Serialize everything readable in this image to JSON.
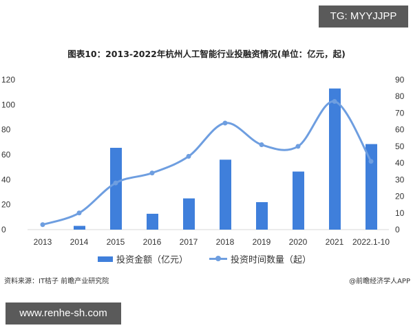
{
  "badges": {
    "top_right": "TG: MYYJJPP",
    "bottom_left": "www.renhe-sh.com"
  },
  "title": "图表10：2013-2022年杭州人工智能行业投融资情况(单位：亿元，起)",
  "legend": {
    "bar_label": "投资金额（亿元）",
    "line_label": "投资时间数量（起）"
  },
  "footer": {
    "source": "资料来源：IT桔子 前瞻产业研究院",
    "credit": "@前瞻经济学人APP"
  },
  "colors": {
    "bar": "#3f7fdb",
    "line": "#6e9ee0",
    "axis": "#d9d9d9"
  },
  "chart_data": {
    "type": "bar+line",
    "title": "图表10：2013-2022年杭州人工智能行业投融资情况(单位：亿元，起)",
    "categories": [
      "2013",
      "2014",
      "2015",
      "2016",
      "2017",
      "2018",
      "2019",
      "2020",
      "2021",
      "2022.1-10"
    ],
    "series": [
      {
        "name": "投资金额（亿元）",
        "type": "bar",
        "axis": "left",
        "values": [
          0,
          3,
          65.5,
          12.7,
          25,
          56,
          22,
          46.5,
          113,
          68.5
        ]
      },
      {
        "name": "投资时间数量（起）",
        "type": "line",
        "axis": "right",
        "smooth": true,
        "values": [
          3,
          10,
          28,
          34,
          44,
          64,
          51,
          50,
          77,
          41
        ]
      }
    ],
    "left_axis": {
      "ticks": [
        "0",
        "20",
        "40",
        "60",
        "80",
        "100",
        "120"
      ],
      "ylim": [
        0,
        120
      ]
    },
    "right_axis": {
      "ticks": [
        "0",
        "10",
        "20",
        "30",
        "40",
        "50",
        "60",
        "70",
        "80",
        "90"
      ],
      "ylim": [
        0,
        90
      ]
    },
    "legend_position": "bottom",
    "grid": false
  }
}
